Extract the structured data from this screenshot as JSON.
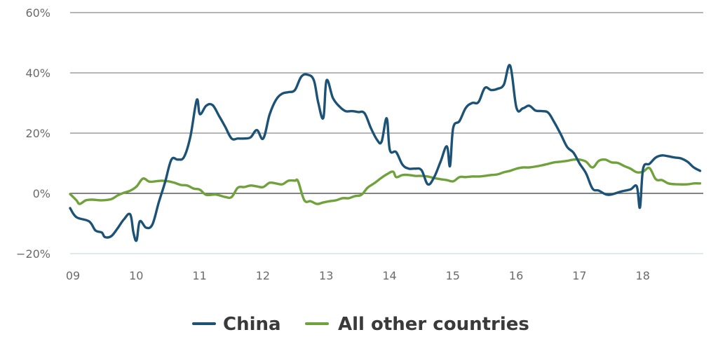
{
  "chart_data": {
    "type": "line",
    "title": "",
    "xlabel": "",
    "ylabel": "",
    "x_ticks": [
      "09",
      "10",
      "11",
      "12",
      "13",
      "14",
      "15",
      "16",
      "17",
      "18"
    ],
    "y_ticks": [
      "60%",
      "40%",
      "20%",
      "0%",
      "−20%"
    ],
    "xlim": [
      2009.0,
      2019.0
    ],
    "ylim": [
      -20,
      60
    ],
    "grid": "horizontal",
    "legend_position": "bottom",
    "series": [
      {
        "name": "China",
        "color": "#1b5276",
        "points": [
          [
            2009.0,
            -4.9
          ],
          [
            2009.1,
            -7.9
          ],
          [
            2009.3,
            -9.3
          ],
          [
            2009.4,
            -12.3
          ],
          [
            2009.5,
            -13.0
          ],
          [
            2009.55,
            -14.5
          ],
          [
            2009.65,
            -14.2
          ],
          [
            2009.75,
            -11.6
          ],
          [
            2009.85,
            -8.6
          ],
          [
            2009.95,
            -7.0
          ],
          [
            2010.0,
            -13.0
          ],
          [
            2010.05,
            -15.6
          ],
          [
            2010.1,
            -9.3
          ],
          [
            2010.2,
            -11.4
          ],
          [
            2010.3,
            -10.3
          ],
          [
            2010.4,
            -3.0
          ],
          [
            2010.5,
            3.7
          ],
          [
            2010.6,
            11.2
          ],
          [
            2010.7,
            11.2
          ],
          [
            2010.8,
            12.1
          ],
          [
            2010.9,
            18.9
          ],
          [
            2011.0,
            31.0
          ],
          [
            2011.05,
            26.3
          ],
          [
            2011.15,
            29.1
          ],
          [
            2011.25,
            29.3
          ],
          [
            2011.35,
            25.8
          ],
          [
            2011.45,
            22.1
          ],
          [
            2011.55,
            18.2
          ],
          [
            2011.65,
            18.2
          ],
          [
            2011.75,
            18.2
          ],
          [
            2011.85,
            18.6
          ],
          [
            2011.95,
            21.0
          ],
          [
            2012.05,
            18.2
          ],
          [
            2012.15,
            26.1
          ],
          [
            2012.25,
            31.0
          ],
          [
            2012.35,
            33.1
          ],
          [
            2012.45,
            33.6
          ],
          [
            2012.55,
            34.3
          ],
          [
            2012.65,
            38.7
          ],
          [
            2012.75,
            39.4
          ],
          [
            2012.85,
            37.5
          ],
          [
            2012.92,
            30.0
          ],
          [
            2013.0,
            25.1
          ],
          [
            2013.05,
            37.5
          ],
          [
            2013.15,
            31.7
          ],
          [
            2013.25,
            28.9
          ],
          [
            2013.35,
            27.3
          ],
          [
            2013.45,
            27.3
          ],
          [
            2013.55,
            27.0
          ],
          [
            2013.65,
            26.6
          ],
          [
            2013.75,
            21.7
          ],
          [
            2013.85,
            17.7
          ],
          [
            2013.92,
            17.2
          ],
          [
            2014.0,
            24.9
          ],
          [
            2014.05,
            14.4
          ],
          [
            2014.15,
            13.7
          ],
          [
            2014.25,
            9.5
          ],
          [
            2014.35,
            8.2
          ],
          [
            2014.45,
            8.2
          ],
          [
            2014.55,
            7.7
          ],
          [
            2014.65,
            3.0
          ],
          [
            2014.75,
            5.4
          ],
          [
            2014.85,
            10.5
          ],
          [
            2014.95,
            15.6
          ],
          [
            2015.0,
            9.1
          ],
          [
            2015.05,
            21.7
          ],
          [
            2015.15,
            24.0
          ],
          [
            2015.25,
            28.4
          ],
          [
            2015.35,
            30.0
          ],
          [
            2015.45,
            30.3
          ],
          [
            2015.55,
            35.0
          ],
          [
            2015.65,
            34.3
          ],
          [
            2015.75,
            34.7
          ],
          [
            2015.85,
            36.1
          ],
          [
            2015.95,
            42.4
          ],
          [
            2016.05,
            28.4
          ],
          [
            2016.15,
            28.2
          ],
          [
            2016.25,
            29.1
          ],
          [
            2016.35,
            27.5
          ],
          [
            2016.45,
            27.3
          ],
          [
            2016.55,
            26.8
          ],
          [
            2016.65,
            23.5
          ],
          [
            2016.75,
            19.6
          ],
          [
            2016.85,
            15.4
          ],
          [
            2016.95,
            13.5
          ],
          [
            2017.05,
            9.8
          ],
          [
            2017.15,
            6.6
          ],
          [
            2017.25,
            1.6
          ],
          [
            2017.35,
            0.9
          ],
          [
            2017.5,
            -0.5
          ],
          [
            2017.7,
            0.6
          ],
          [
            2017.85,
            1.3
          ],
          [
            2017.95,
            2.3
          ],
          [
            2018.0,
            -4.7
          ],
          [
            2018.05,
            8.2
          ],
          [
            2018.15,
            9.8
          ],
          [
            2018.25,
            11.9
          ],
          [
            2018.35,
            12.6
          ],
          [
            2018.45,
            12.3
          ],
          [
            2018.55,
            11.9
          ],
          [
            2018.65,
            11.6
          ],
          [
            2018.75,
            10.5
          ],
          [
            2018.85,
            8.6
          ],
          [
            2018.95,
            7.5
          ]
        ]
      },
      {
        "name": "All other countries",
        "color": "#6fa23a",
        "points": [
          [
            2009.0,
            -0.2
          ],
          [
            2009.1,
            -2.3
          ],
          [
            2009.15,
            -3.5
          ],
          [
            2009.25,
            -2.3
          ],
          [
            2009.35,
            -2.1
          ],
          [
            2009.5,
            -2.3
          ],
          [
            2009.65,
            -1.9
          ],
          [
            2009.75,
            -0.7
          ],
          [
            2009.85,
            0.2
          ],
          [
            2009.95,
            0.9
          ],
          [
            2010.05,
            2.3
          ],
          [
            2010.15,
            4.9
          ],
          [
            2010.25,
            3.9
          ],
          [
            2010.35,
            4.0
          ],
          [
            2010.45,
            4.2
          ],
          [
            2010.55,
            4.0
          ],
          [
            2010.65,
            3.5
          ],
          [
            2010.75,
            2.8
          ],
          [
            2010.85,
            2.6
          ],
          [
            2010.95,
            1.6
          ],
          [
            2011.05,
            1.2
          ],
          [
            2011.15,
            -0.5
          ],
          [
            2011.3,
            -0.4
          ],
          [
            2011.45,
            -1.2
          ],
          [
            2011.55,
            -1.2
          ],
          [
            2011.65,
            1.9
          ],
          [
            2011.75,
            2.1
          ],
          [
            2011.85,
            2.6
          ],
          [
            2011.95,
            2.3
          ],
          [
            2012.05,
            2.1
          ],
          [
            2012.15,
            3.5
          ],
          [
            2012.25,
            3.3
          ],
          [
            2012.35,
            3.0
          ],
          [
            2012.45,
            4.2
          ],
          [
            2012.55,
            4.2
          ],
          [
            2012.6,
            4.0
          ],
          [
            2012.7,
            -2.3
          ],
          [
            2012.8,
            -2.6
          ],
          [
            2012.9,
            -3.5
          ],
          [
            2013.0,
            -3.0
          ],
          [
            2013.1,
            -2.6
          ],
          [
            2013.2,
            -2.3
          ],
          [
            2013.3,
            -1.6
          ],
          [
            2013.4,
            -1.6
          ],
          [
            2013.5,
            -0.9
          ],
          [
            2013.6,
            -0.5
          ],
          [
            2013.7,
            1.9
          ],
          [
            2013.8,
            3.3
          ],
          [
            2013.9,
            4.9
          ],
          [
            2014.0,
            6.3
          ],
          [
            2014.1,
            7.2
          ],
          [
            2014.15,
            5.4
          ],
          [
            2014.25,
            6.1
          ],
          [
            2014.35,
            6.1
          ],
          [
            2014.45,
            5.8
          ],
          [
            2014.55,
            5.8
          ],
          [
            2014.65,
            5.6
          ],
          [
            2014.75,
            5.1
          ],
          [
            2014.85,
            4.7
          ],
          [
            2014.95,
            4.4
          ],
          [
            2015.05,
            4.0
          ],
          [
            2015.15,
            5.4
          ],
          [
            2015.25,
            5.4
          ],
          [
            2015.35,
            5.6
          ],
          [
            2015.45,
            5.6
          ],
          [
            2015.55,
            5.8
          ],
          [
            2015.65,
            6.1
          ],
          [
            2015.75,
            6.3
          ],
          [
            2015.85,
            7.0
          ],
          [
            2015.95,
            7.5
          ],
          [
            2016.05,
            8.2
          ],
          [
            2016.15,
            8.6
          ],
          [
            2016.25,
            8.6
          ],
          [
            2016.35,
            8.9
          ],
          [
            2016.45,
            9.3
          ],
          [
            2016.55,
            9.8
          ],
          [
            2016.65,
            10.3
          ],
          [
            2016.75,
            10.5
          ],
          [
            2016.85,
            10.8
          ],
          [
            2016.95,
            11.2
          ],
          [
            2017.05,
            11.2
          ],
          [
            2017.15,
            10.5
          ],
          [
            2017.25,
            8.6
          ],
          [
            2017.35,
            10.8
          ],
          [
            2017.45,
            11.2
          ],
          [
            2017.55,
            10.3
          ],
          [
            2017.65,
            10.1
          ],
          [
            2017.75,
            9.1
          ],
          [
            2017.85,
            8.2
          ],
          [
            2017.95,
            7.0
          ],
          [
            2018.05,
            7.2
          ],
          [
            2018.15,
            8.4
          ],
          [
            2018.25,
            4.7
          ],
          [
            2018.35,
            4.4
          ],
          [
            2018.45,
            3.3
          ],
          [
            2018.6,
            3.0
          ],
          [
            2018.75,
            3.0
          ],
          [
            2018.85,
            3.3
          ],
          [
            2018.95,
            3.3
          ]
        ]
      }
    ]
  }
}
